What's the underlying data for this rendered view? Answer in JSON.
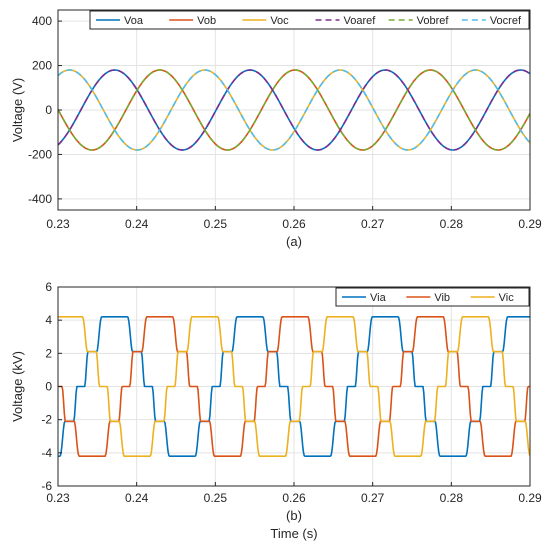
{
  "chart_data": [
    {
      "type": "line",
      "caption": "(a)",
      "xlabel": "",
      "ylabel": "Voltage (V)",
      "xlim": [
        0.23,
        0.29
      ],
      "ylim": [
        -450,
        450
      ],
      "xticks": [
        0.23,
        0.24,
        0.25,
        0.26,
        0.27,
        0.28,
        0.29
      ],
      "xtick_labels": [
        "0.23",
        "0.24",
        "0.25",
        "0.26",
        "0.27",
        "0.28",
        "0.29"
      ],
      "yticks": [
        -400,
        -200,
        0,
        200,
        400
      ],
      "ytick_labels": [
        "-400",
        "-200",
        "0",
        "200",
        "400"
      ],
      "grid": true,
      "legend_position": "top-right",
      "legend_columns": 6,
      "waveform": {
        "amplitude": 180,
        "period_s": 0.0172,
        "peak_time_s": 0.2372
      },
      "series": [
        {
          "name": "Voa",
          "color": "#0072BD",
          "style": "solid",
          "phase_deg": 0
        },
        {
          "name": "Vob",
          "color": "#D95319",
          "style": "solid",
          "phase_deg": -120
        },
        {
          "name": "Voc",
          "color": "#EDB120",
          "style": "solid",
          "phase_deg": 120
        },
        {
          "name": "Voaref",
          "color": "#7E2F8E",
          "style": "dashed",
          "phase_deg": 0
        },
        {
          "name": "Vobref",
          "color": "#77AC30",
          "style": "dashed",
          "phase_deg": -120
        },
        {
          "name": "Vocref",
          "color": "#4DBEEE",
          "style": "dashed",
          "phase_deg": 120
        }
      ]
    },
    {
      "type": "line",
      "caption": "(b)",
      "xlabel": "Time (s)",
      "ylabel": "Voltage (kV)",
      "xlim": [
        0.23,
        0.29
      ],
      "ylim": [
        -6,
        6
      ],
      "xticks": [
        0.23,
        0.24,
        0.25,
        0.26,
        0.27,
        0.28,
        0.29
      ],
      "xtick_labels": [
        "0.23",
        "0.24",
        "0.25",
        "0.26",
        "0.27",
        "0.28",
        "0.29"
      ],
      "yticks": [
        -6,
        -4,
        -2,
        0,
        2,
        4,
        6
      ],
      "ytick_labels": [
        "-6",
        "-4",
        "-2",
        "0",
        "2",
        "4",
        "6"
      ],
      "grid": true,
      "legend_position": "top-right",
      "legend_columns": 3,
      "waveform": {
        "levels_kV": [
          -4.2,
          -2.1,
          0,
          2.1,
          4.2
        ],
        "period_s": 0.0172,
        "peak_time_s": 0.2372
      },
      "series": [
        {
          "name": "Via",
          "color": "#0072BD",
          "style": "solid",
          "phase_deg": 0
        },
        {
          "name": "Vib",
          "color": "#D95319",
          "style": "solid",
          "phase_deg": -120
        },
        {
          "name": "Vic",
          "color": "#EDB120",
          "style": "solid",
          "phase_deg": 120
        }
      ]
    }
  ]
}
